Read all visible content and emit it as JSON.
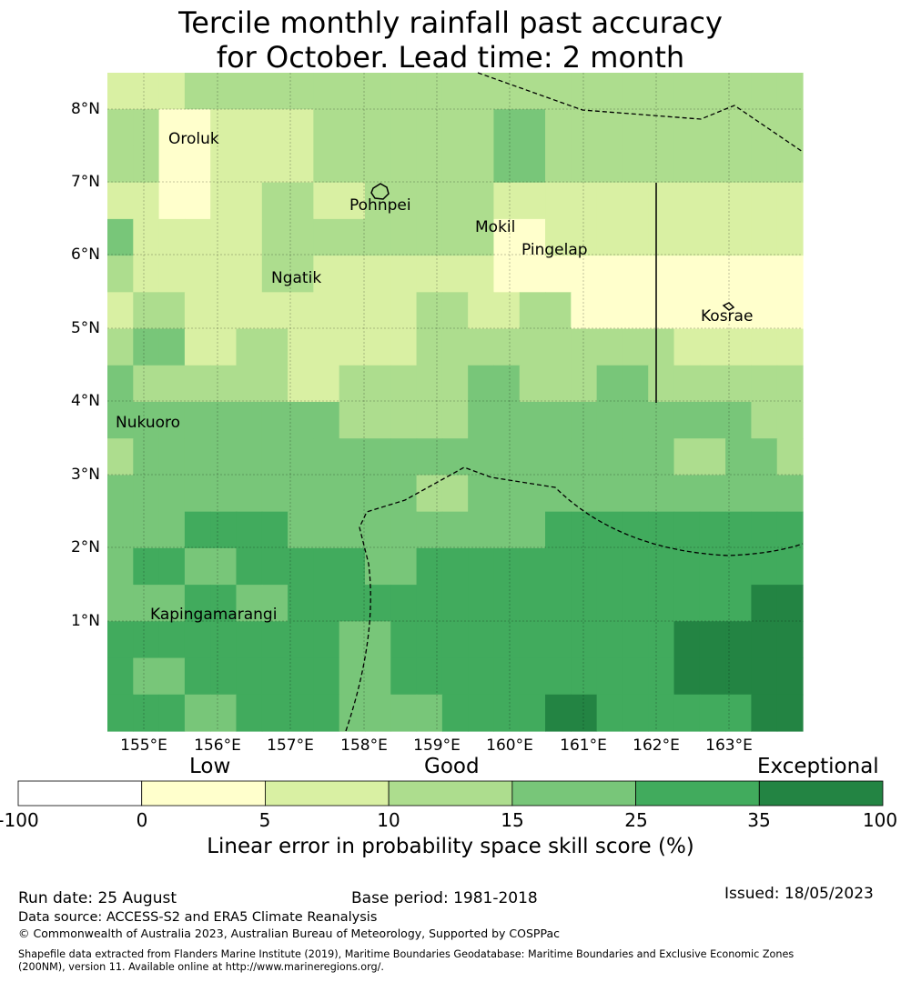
{
  "title_line1": "Tercile monthly rainfall past accuracy",
  "title_line2": "for October. Lead time: 2 month",
  "map": {
    "lon_labels": [
      "155°E",
      "156°E",
      "157°E",
      "158°E",
      "159°E",
      "160°E",
      "161°E",
      "162°E",
      "163°E"
    ],
    "lat_labels": [
      "8°N",
      "7°N",
      "6°N",
      "5°N",
      "4°N",
      "3°N",
      "2°N",
      "1°N"
    ],
    "places": [
      {
        "name": "Oroluk"
      },
      {
        "name": "Pohnpei"
      },
      {
        "name": "Mokil"
      },
      {
        "name": "Pingelap"
      },
      {
        "name": "Ngatik"
      },
      {
        "name": "Kosrae"
      },
      {
        "name": "Nukuoro"
      },
      {
        "name": "Kapingamarangi"
      }
    ],
    "grid_levels": [
      [
        2,
        2,
        2,
        3,
        3,
        3,
        3,
        3,
        3,
        3,
        3,
        3,
        3,
        3,
        3,
        3,
        3,
        3,
        3,
        3,
        3,
        3,
        3,
        3,
        3,
        3,
        3
      ],
      [
        3,
        3,
        1,
        1,
        2,
        2,
        2,
        2,
        3,
        3,
        3,
        3,
        3,
        3,
        3,
        4,
        4,
        3,
        3,
        3,
        3,
        3,
        3,
        3,
        3,
        3,
        3
      ],
      [
        3,
        3,
        1,
        1,
        2,
        2,
        2,
        2,
        3,
        3,
        3,
        3,
        3,
        3,
        3,
        4,
        4,
        3,
        3,
        3,
        3,
        3,
        3,
        3,
        3,
        3,
        3
      ],
      [
        2,
        2,
        1,
        1,
        2,
        2,
        3,
        3,
        2,
        2,
        3,
        3,
        3,
        3,
        3,
        2,
        2,
        2,
        2,
        2,
        2,
        2,
        2,
        2,
        2,
        2,
        2
      ],
      [
        4,
        2,
        2,
        2,
        2,
        2,
        3,
        3,
        3,
        3,
        3,
        3,
        3,
        3,
        3,
        1,
        1,
        2,
        2,
        2,
        2,
        2,
        2,
        2,
        2,
        2,
        2
      ],
      [
        3,
        2,
        2,
        2,
        2,
        2,
        3,
        3,
        2,
        2,
        2,
        2,
        2,
        2,
        2,
        1,
        1,
        1,
        1,
        1,
        1,
        1,
        1,
        1,
        1,
        1,
        1
      ],
      [
        2,
        3,
        3,
        2,
        2,
        2,
        2,
        2,
        2,
        2,
        2,
        2,
        3,
        3,
        2,
        2,
        3,
        3,
        1,
        1,
        1,
        1,
        1,
        1,
        1,
        1,
        1
      ],
      [
        3,
        4,
        4,
        2,
        2,
        3,
        3,
        2,
        2,
        2,
        2,
        2,
        3,
        3,
        3,
        3,
        3,
        3,
        3,
        3,
        3,
        3,
        2,
        2,
        2,
        2,
        2
      ],
      [
        4,
        3,
        3,
        3,
        3,
        3,
        3,
        2,
        2,
        3,
        3,
        3,
        3,
        3,
        4,
        4,
        3,
        3,
        3,
        4,
        4,
        3,
        3,
        3,
        3,
        3,
        3
      ],
      [
        4,
        4,
        4,
        4,
        4,
        4,
        4,
        4,
        4,
        3,
        3,
        3,
        3,
        3,
        4,
        4,
        4,
        4,
        4,
        4,
        4,
        4,
        4,
        4,
        4,
        3,
        3
      ],
      [
        3,
        4,
        4,
        4,
        4,
        4,
        4,
        4,
        4,
        4,
        4,
        4,
        4,
        4,
        4,
        4,
        4,
        4,
        4,
        4,
        4,
        4,
        3,
        3,
        4,
        4,
        3
      ],
      [
        4,
        4,
        4,
        4,
        4,
        4,
        4,
        4,
        4,
        4,
        4,
        4,
        3,
        3,
        4,
        4,
        4,
        4,
        4,
        4,
        4,
        4,
        4,
        4,
        4,
        4,
        4
      ],
      [
        4,
        4,
        4,
        5,
        5,
        5,
        5,
        4,
        4,
        4,
        4,
        4,
        4,
        4,
        4,
        4,
        4,
        5,
        5,
        5,
        5,
        5,
        5,
        5,
        5,
        5,
        5
      ],
      [
        4,
        5,
        5,
        4,
        4,
        5,
        5,
        5,
        5,
        5,
        4,
        4,
        5,
        5,
        5,
        5,
        5,
        5,
        5,
        5,
        5,
        5,
        5,
        5,
        5,
        5,
        5
      ],
      [
        4,
        4,
        4,
        5,
        5,
        4,
        4,
        5,
        5,
        5,
        5,
        5,
        5,
        5,
        5,
        5,
        5,
        5,
        5,
        5,
        5,
        5,
        5,
        5,
        5,
        6,
        6
      ],
      [
        5,
        5,
        5,
        5,
        5,
        5,
        5,
        5,
        5,
        4,
        4,
        5,
        5,
        5,
        5,
        5,
        5,
        5,
        5,
        5,
        5,
        5,
        6,
        6,
        6,
        6,
        6
      ],
      [
        5,
        4,
        4,
        5,
        5,
        5,
        5,
        5,
        5,
        4,
        4,
        5,
        5,
        5,
        5,
        5,
        5,
        5,
        5,
        5,
        5,
        5,
        6,
        6,
        6,
        6,
        6
      ],
      [
        5,
        5,
        5,
        4,
        4,
        5,
        5,
        5,
        5,
        4,
        4,
        4,
        4,
        5,
        5,
        5,
        5,
        6,
        6,
        5,
        5,
        5,
        5,
        5,
        5,
        6,
        6
      ]
    ]
  },
  "colorbar": {
    "colors": [
      "#ffffff",
      "#ffffcc",
      "#d9f0a3",
      "#addd8e",
      "#78c679",
      "#41ab5d",
      "#238443"
    ],
    "ticks": [
      "-100",
      "0",
      "5",
      "10",
      "15",
      "25",
      "35",
      "100"
    ],
    "categories": [
      "Low",
      "Good",
      "Exceptional"
    ],
    "label": "Linear error in probability space skill score (%)"
  },
  "footer": {
    "run_date": "Run date: 25 August",
    "base_period": "Base period: 1981-2018",
    "issued": "Issued: 18/05/2023",
    "data_source": "Data source: ACCESS-S2 and ERA5 Climate Reanalysis",
    "copyright": "© Commonwealth of Australia 2023, Australian Bureau of Meteorology, Supported by COSPPac",
    "shapefile_line1": "Shapefile data extracted from Flanders Marine Institute (2019), Maritime Boundaries Geodatabase: Maritime Boundaries and Exclusive Economic Zones",
    "shapefile_line2": "(200NM), version 11. Available online at http://www.marineregions.org/."
  }
}
